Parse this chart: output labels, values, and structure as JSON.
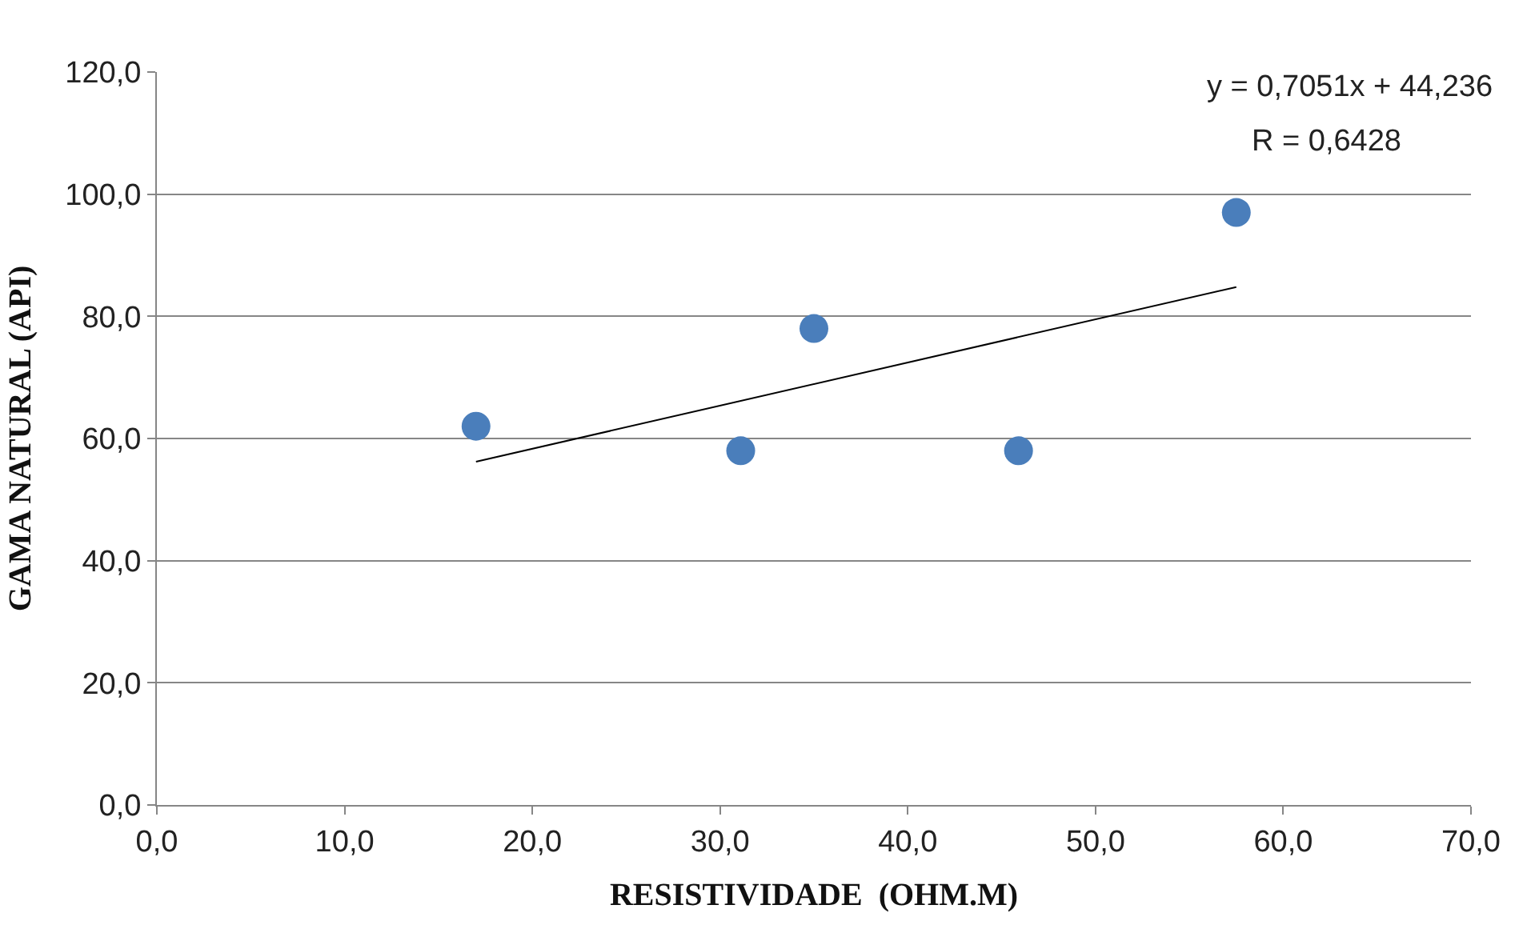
{
  "chart_data": {
    "type": "scatter",
    "xlabel": "RESISTIVIDADE  (OHM.M)",
    "ylabel": "GAMA NATURAL (API)",
    "x": [
      17.0,
      31.1,
      35.0,
      45.9,
      57.5
    ],
    "series": [
      {
        "color": "#4a7ebb",
        "values": [
          62,
          58,
          78,
          58,
          97
        ],
        "marker": "circle"
      },
      {
        "type": "line",
        "color": "#000000",
        "x": [
          17.0,
          57.5
        ],
        "values": [
          56.2,
          84.8
        ],
        "marker": "none"
      }
    ],
    "xlim": [
      0,
      70
    ],
    "ylim": [
      0,
      120
    ],
    "xticks": [
      {
        "value": 0,
        "label": "0,0"
      },
      {
        "value": 10,
        "label": "10,0"
      },
      {
        "value": 20,
        "label": "20,0"
      },
      {
        "value": 30,
        "label": "30,0"
      },
      {
        "value": 40,
        "label": "40,0"
      },
      {
        "value": 50,
        "label": "50,0"
      },
      {
        "value": 60,
        "label": "60,0"
      },
      {
        "value": 70,
        "label": "70,0"
      }
    ],
    "yticks": [
      {
        "value": 0,
        "label": "0,0"
      },
      {
        "value": 20,
        "label": "20,0"
      },
      {
        "value": 40,
        "label": "40,0"
      },
      {
        "value": 60,
        "label": "60,0"
      },
      {
        "value": 80,
        "label": "80,0"
      },
      {
        "value": 100,
        "label": "100,0"
      },
      {
        "value": 120,
        "label": "120,0"
      }
    ],
    "grid": "y",
    "annotations": [
      "y = 0,7051x + 44,236",
      "R = 0,6428"
    ]
  }
}
